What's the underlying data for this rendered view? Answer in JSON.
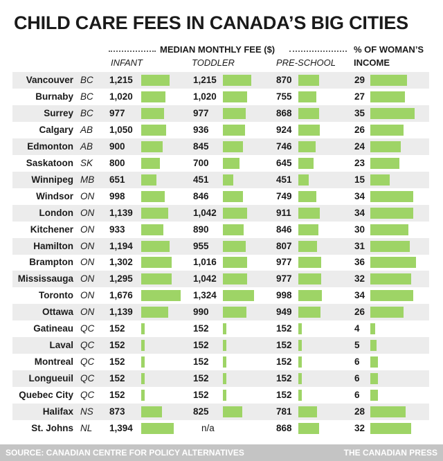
{
  "title": "CHILD CARE FEES IN CANADA’S BIG CITIES",
  "header": {
    "median_label": "MEDIAN MONTHLY FEE ($)",
    "pct_label_line1": "% OF WOMAN’S",
    "pct_label_line2": "INCOME",
    "infant": "INFANT",
    "toddler": "TODDLER",
    "preschool": "PRE-SCHOOL"
  },
  "chart_data": {
    "type": "table",
    "title": "CHILD CARE FEES IN CANADA’S BIG CITIES",
    "columns": [
      "INFANT",
      "TODDLER",
      "PRE-SCHOOL",
      "% OF WOMAN’S INCOME"
    ],
    "rows": [
      {
        "city": "Vancouver",
        "prov": "BC",
        "infant": 1215,
        "infant_label": "1,215",
        "toddler": 1215,
        "toddler_label": "1,215",
        "preschool": 870,
        "preschool_label": "870",
        "pct": 29,
        "pct_label": "29"
      },
      {
        "city": "Burnaby",
        "prov": "BC",
        "infant": 1020,
        "infant_label": "1,020",
        "toddler": 1020,
        "toddler_label": "1,020",
        "preschool": 755,
        "preschool_label": "755",
        "pct": 27,
        "pct_label": "27"
      },
      {
        "city": "Surrey",
        "prov": "BC",
        "infant": 977,
        "infant_label": "977",
        "toddler": 977,
        "toddler_label": "977",
        "preschool": 868,
        "preschool_label": "868",
        "pct": 35,
        "pct_label": "35"
      },
      {
        "city": "Calgary",
        "prov": "AB",
        "infant": 1050,
        "infant_label": "1,050",
        "toddler": 936,
        "toddler_label": "936",
        "preschool": 924,
        "preschool_label": "924",
        "pct": 26,
        "pct_label": "26"
      },
      {
        "city": "Edmonton",
        "prov": "AB",
        "infant": 900,
        "infant_label": "900",
        "toddler": 845,
        "toddler_label": "845",
        "preschool": 746,
        "preschool_label": "746",
        "pct": 24,
        "pct_label": "24"
      },
      {
        "city": "Saskatoon",
        "prov": "SK",
        "infant": 800,
        "infant_label": "800",
        "toddler": 700,
        "toddler_label": "700",
        "preschool": 645,
        "preschool_label": "645",
        "pct": 23,
        "pct_label": "23"
      },
      {
        "city": "Winnipeg",
        "prov": "MB",
        "infant": 651,
        "infant_label": "651",
        "toddler": 451,
        "toddler_label": "451",
        "preschool": 451,
        "preschool_label": "451",
        "pct": 15,
        "pct_label": "15"
      },
      {
        "city": "Windsor",
        "prov": "ON",
        "infant": 998,
        "infant_label": "998",
        "toddler": 846,
        "toddler_label": "846",
        "preschool": 749,
        "preschool_label": "749",
        "pct": 34,
        "pct_label": "34"
      },
      {
        "city": "London",
        "prov": "ON",
        "infant": 1139,
        "infant_label": "1,139",
        "toddler": 1042,
        "toddler_label": "1,042",
        "preschool": 911,
        "preschool_label": "911",
        "pct": 34,
        "pct_label": "34"
      },
      {
        "city": "Kitchener",
        "prov": "ON",
        "infant": 933,
        "infant_label": "933",
        "toddler": 890,
        "toddler_label": "890",
        "preschool": 846,
        "preschool_label": "846",
        "pct": 30,
        "pct_label": "30"
      },
      {
        "city": "Hamilton",
        "prov": "ON",
        "infant": 1194,
        "infant_label": "1,194",
        "toddler": 955,
        "toddler_label": "955",
        "preschool": 807,
        "preschool_label": "807",
        "pct": 31,
        "pct_label": "31"
      },
      {
        "city": "Brampton",
        "prov": "ON",
        "infant": 1302,
        "infant_label": "1,302",
        "toddler": 1016,
        "toddler_label": "1,016",
        "preschool": 977,
        "preschool_label": "977",
        "pct": 36,
        "pct_label": "36"
      },
      {
        "city": "Mississauga",
        "prov": "ON",
        "infant": 1295,
        "infant_label": "1,295",
        "toddler": 1042,
        "toddler_label": "1,042",
        "preschool": 977,
        "preschool_label": "977",
        "pct": 32,
        "pct_label": "32"
      },
      {
        "city": "Toronto",
        "prov": "ON",
        "infant": 1676,
        "infant_label": "1,676",
        "toddler": 1324,
        "toddler_label": "1,324",
        "preschool": 998,
        "preschool_label": "998",
        "pct": 34,
        "pct_label": "34"
      },
      {
        "city": "Ottawa",
        "prov": "ON",
        "infant": 1139,
        "infant_label": "1,139",
        "toddler": 990,
        "toddler_label": "990",
        "preschool": 949,
        "preschool_label": "949",
        "pct": 26,
        "pct_label": "26"
      },
      {
        "city": "Gatineau",
        "prov": "QC",
        "infant": 152,
        "infant_label": "152",
        "toddler": 152,
        "toddler_label": "152",
        "preschool": 152,
        "preschool_label": "152",
        "pct": 4,
        "pct_label": "4"
      },
      {
        "city": "Laval",
        "prov": "QC",
        "infant": 152,
        "infant_label": "152",
        "toddler": 152,
        "toddler_label": "152",
        "preschool": 152,
        "preschool_label": "152",
        "pct": 5,
        "pct_label": "5"
      },
      {
        "city": "Montreal",
        "prov": "QC",
        "infant": 152,
        "infant_label": "152",
        "toddler": 152,
        "toddler_label": "152",
        "preschool": 152,
        "preschool_label": "152",
        "pct": 6,
        "pct_label": "6"
      },
      {
        "city": "Longueuil",
        "prov": "QC",
        "infant": 152,
        "infant_label": "152",
        "toddler": 152,
        "toddler_label": "152",
        "preschool": 152,
        "preschool_label": "152",
        "pct": 6,
        "pct_label": "6"
      },
      {
        "city": "Quebec City",
        "prov": "QC",
        "infant": 152,
        "infant_label": "152",
        "toddler": 152,
        "toddler_label": "152",
        "preschool": 152,
        "preschool_label": "152",
        "pct": 6,
        "pct_label": "6"
      },
      {
        "city": "Halifax",
        "prov": "NS",
        "infant": 873,
        "infant_label": "873",
        "toddler": 825,
        "toddler_label": "825",
        "preschool": 781,
        "preschool_label": "781",
        "pct": 28,
        "pct_label": "28"
      },
      {
        "city": "St. Johns",
        "prov": "NL",
        "infant": 1394,
        "infant_label": "1,394",
        "toddler": null,
        "toddler_label": "n/a",
        "preschool": 868,
        "preschool_label": "868",
        "pct": 32,
        "pct_label": "32"
      }
    ]
  },
  "footer": {
    "source": "SOURCE: CANADIAN CENTRE FOR POLICY ALTERNATIVES",
    "credit": "THE CANADIAN PRESS"
  },
  "colors": {
    "bar": "#9ed466",
    "row_alt": "#ececec",
    "footer_bg": "#c4c4c4"
  }
}
